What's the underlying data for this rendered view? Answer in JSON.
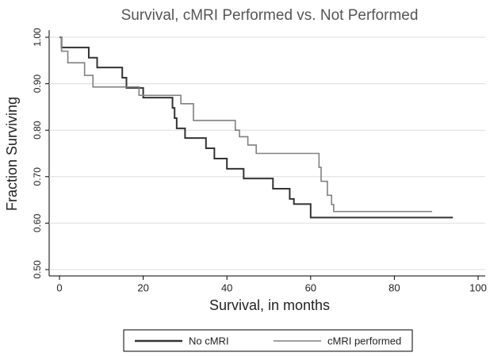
{
  "chart_data": {
    "type": "step",
    "title": "Survival, cMRI Performed vs. Not Performed",
    "x_label": "Survival, in months",
    "y_label": "Fraction Surviving",
    "xlim": [
      0,
      100
    ],
    "xticks": [
      0,
      20,
      40,
      60,
      80,
      100
    ],
    "ylim": [
      0.5,
      1.0
    ],
    "yticks": [
      {
        "value": 0.5,
        "label": "0.50"
      },
      {
        "value": 0.6,
        "label": "0.60"
      },
      {
        "value": 0.7,
        "label": "0.70"
      },
      {
        "value": 0.8,
        "label": "0.80"
      },
      {
        "value": 0.9,
        "label": "0.90"
      },
      {
        "value": 1.0,
        "label": "1.00"
      }
    ],
    "grid": true,
    "legend": "bottom",
    "series": [
      {
        "name": "No cMRI",
        "color": "#333333",
        "x": [
          0,
          0.5,
          7,
          9,
          15,
          16,
          20,
          27,
          27.5,
          28,
          30,
          35,
          37,
          40,
          44,
          51,
          55,
          56,
          60,
          94
        ],
        "values": [
          1.0,
          0.978,
          0.956,
          0.935,
          0.913,
          0.891,
          0.87,
          0.848,
          0.826,
          0.804,
          0.783,
          0.761,
          0.739,
          0.717,
          0.696,
          0.674,
          0.652,
          0.641,
          0.612,
          0.612
        ]
      },
      {
        "name": "cMRI performed",
        "color": "#808080",
        "x": [
          0,
          0.5,
          2,
          6,
          8,
          19,
          29,
          32,
          42,
          43,
          45,
          47,
          62,
          62.5,
          64,
          65,
          65.5,
          89
        ],
        "values": [
          1.0,
          0.97,
          0.945,
          0.918,
          0.893,
          0.875,
          0.857,
          0.821,
          0.8,
          0.786,
          0.768,
          0.75,
          0.72,
          0.69,
          0.66,
          0.64,
          0.625,
          0.625
        ]
      }
    ]
  }
}
